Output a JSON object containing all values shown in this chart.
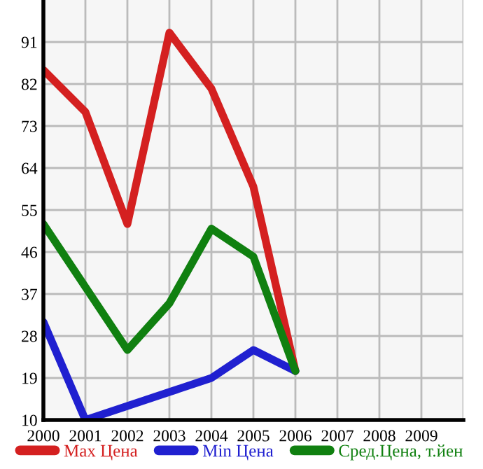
{
  "chart_data": {
    "type": "line",
    "x": [
      2000,
      2001,
      2002,
      2003,
      2004,
      2005,
      2006
    ],
    "series": [
      {
        "name": "Max Цена",
        "color": "#d42020",
        "values": [
          85,
          76,
          52,
          93,
          81,
          60,
          20.5
        ]
      },
      {
        "name": "Min Цена",
        "color": "#2020d0",
        "values": [
          31,
          10,
          13,
          16,
          19,
          25,
          20.5
        ]
      },
      {
        "name": "Сред.Цена, т.йен",
        "color": "#108010",
        "values": [
          52,
          38.5,
          25,
          35,
          51,
          45,
          20.5
        ]
      }
    ],
    "xlim": [
      2000,
      2010
    ],
    "xticks": [
      2000,
      2001,
      2002,
      2003,
      2004,
      2005,
      2006,
      2007,
      2008,
      2009,
      {
        "value": 2010,
        "label": null
      }
    ],
    "ylim": [
      10,
      100
    ],
    "yticks": [
      10,
      19,
      28,
      37,
      46,
      55,
      64,
      73,
      82,
      91
    ],
    "grid": true,
    "legend": "bottom",
    "marker": "none",
    "line_style": "solid"
  }
}
